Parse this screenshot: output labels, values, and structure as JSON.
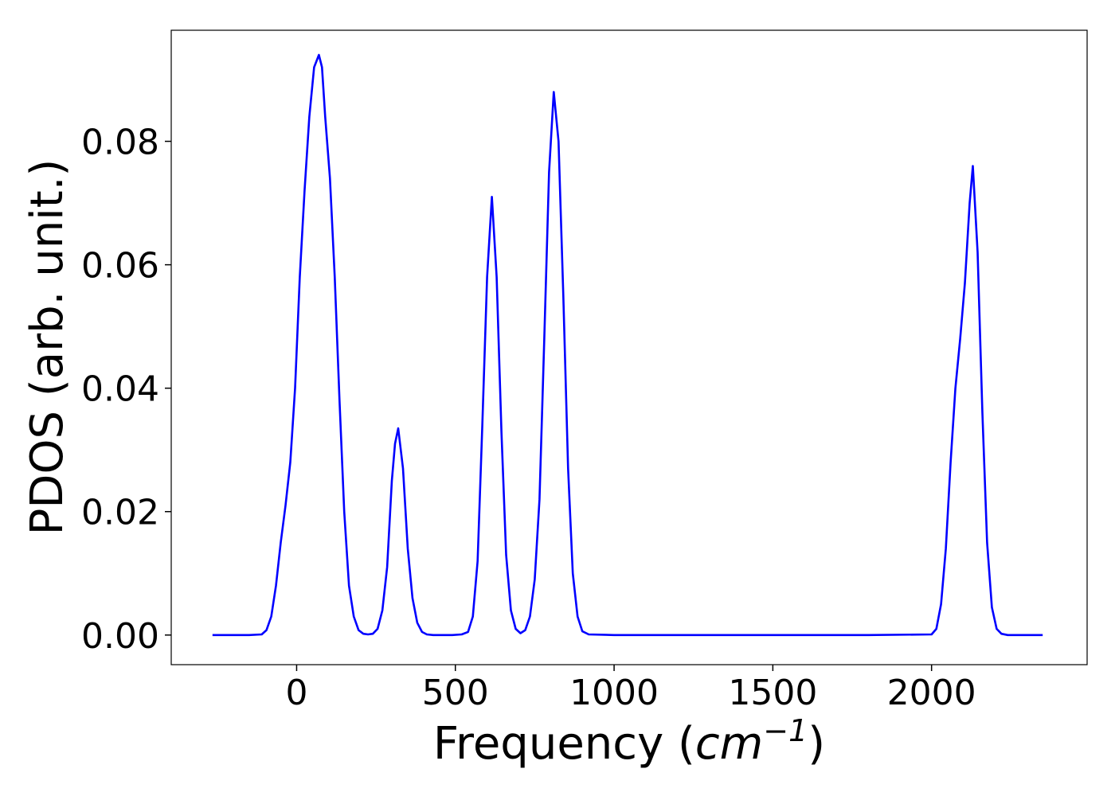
{
  "chart_data": {
    "type": "line",
    "title": "",
    "xlabel": "Frequency (",
    "xlabel_unit_base": "cm",
    "xlabel_unit_exp": "−1",
    "xlabel_close": ")",
    "ylabel": "PDOS (arb. unit.)",
    "xlim": [
      -395,
      2490
    ],
    "ylim": [
      -0.0048,
      0.098
    ],
    "xticks": [
      0,
      500,
      1000,
      1500,
      2000
    ],
    "xtick_labels": [
      "0",
      "500",
      "1000",
      "1500",
      "2000"
    ],
    "yticks": [
      0.0,
      0.02,
      0.04,
      0.06,
      0.08
    ],
    "ytick_labels": [
      "0.00",
      "0.02",
      "0.04",
      "0.06",
      "0.08"
    ],
    "grid": false,
    "line_color": "#0000ff",
    "series": [
      {
        "x": [
          -265,
          -200,
          -150,
          -110,
          -95,
          -80,
          -65,
          -50,
          -35,
          -20,
          -5,
          10,
          25,
          40,
          55,
          70,
          80,
          90,
          105,
          120,
          135,
          150,
          165,
          180,
          195,
          210,
          225,
          240,
          255,
          270,
          285,
          300,
          310,
          320,
          335,
          350,
          365,
          380,
          395,
          410,
          430,
          460,
          490,
          520,
          540,
          555,
          570,
          585,
          600,
          615,
          630,
          645,
          660,
          675,
          690,
          705,
          720,
          735,
          750,
          765,
          780,
          795,
          810,
          825,
          840,
          855,
          870,
          885,
          900,
          920,
          1000,
          1200,
          1500,
          1800,
          2000,
          2015,
          2030,
          2045,
          2060,
          2075,
          2090,
          2105,
          2120,
          2130,
          2145,
          2160,
          2175,
          2190,
          2205,
          2220,
          2240,
          2300,
          2350
        ],
        "y": [
          0,
          0,
          0,
          0.0001,
          0.0008,
          0.003,
          0.008,
          0.015,
          0.021,
          0.028,
          0.04,
          0.058,
          0.072,
          0.084,
          0.092,
          0.094,
          0.092,
          0.084,
          0.074,
          0.058,
          0.038,
          0.02,
          0.008,
          0.003,
          0.0008,
          0.0002,
          0.0001,
          0.0002,
          0.001,
          0.004,
          0.011,
          0.025,
          0.031,
          0.0335,
          0.027,
          0.014,
          0.006,
          0.002,
          0.0005,
          0.0001,
          0,
          0,
          0,
          0.0001,
          0.0005,
          0.003,
          0.012,
          0.034,
          0.058,
          0.071,
          0.058,
          0.033,
          0.013,
          0.004,
          0.001,
          0.0003,
          0.0008,
          0.003,
          0.009,
          0.022,
          0.048,
          0.075,
          0.088,
          0.08,
          0.055,
          0.027,
          0.01,
          0.003,
          0.0006,
          0.0001,
          0,
          0,
          0,
          0,
          0.0001,
          0.001,
          0.005,
          0.014,
          0.028,
          0.04,
          0.048,
          0.057,
          0.07,
          0.076,
          0.062,
          0.036,
          0.015,
          0.0045,
          0.001,
          0.0002,
          0,
          0,
          0
        ]
      }
    ]
  }
}
